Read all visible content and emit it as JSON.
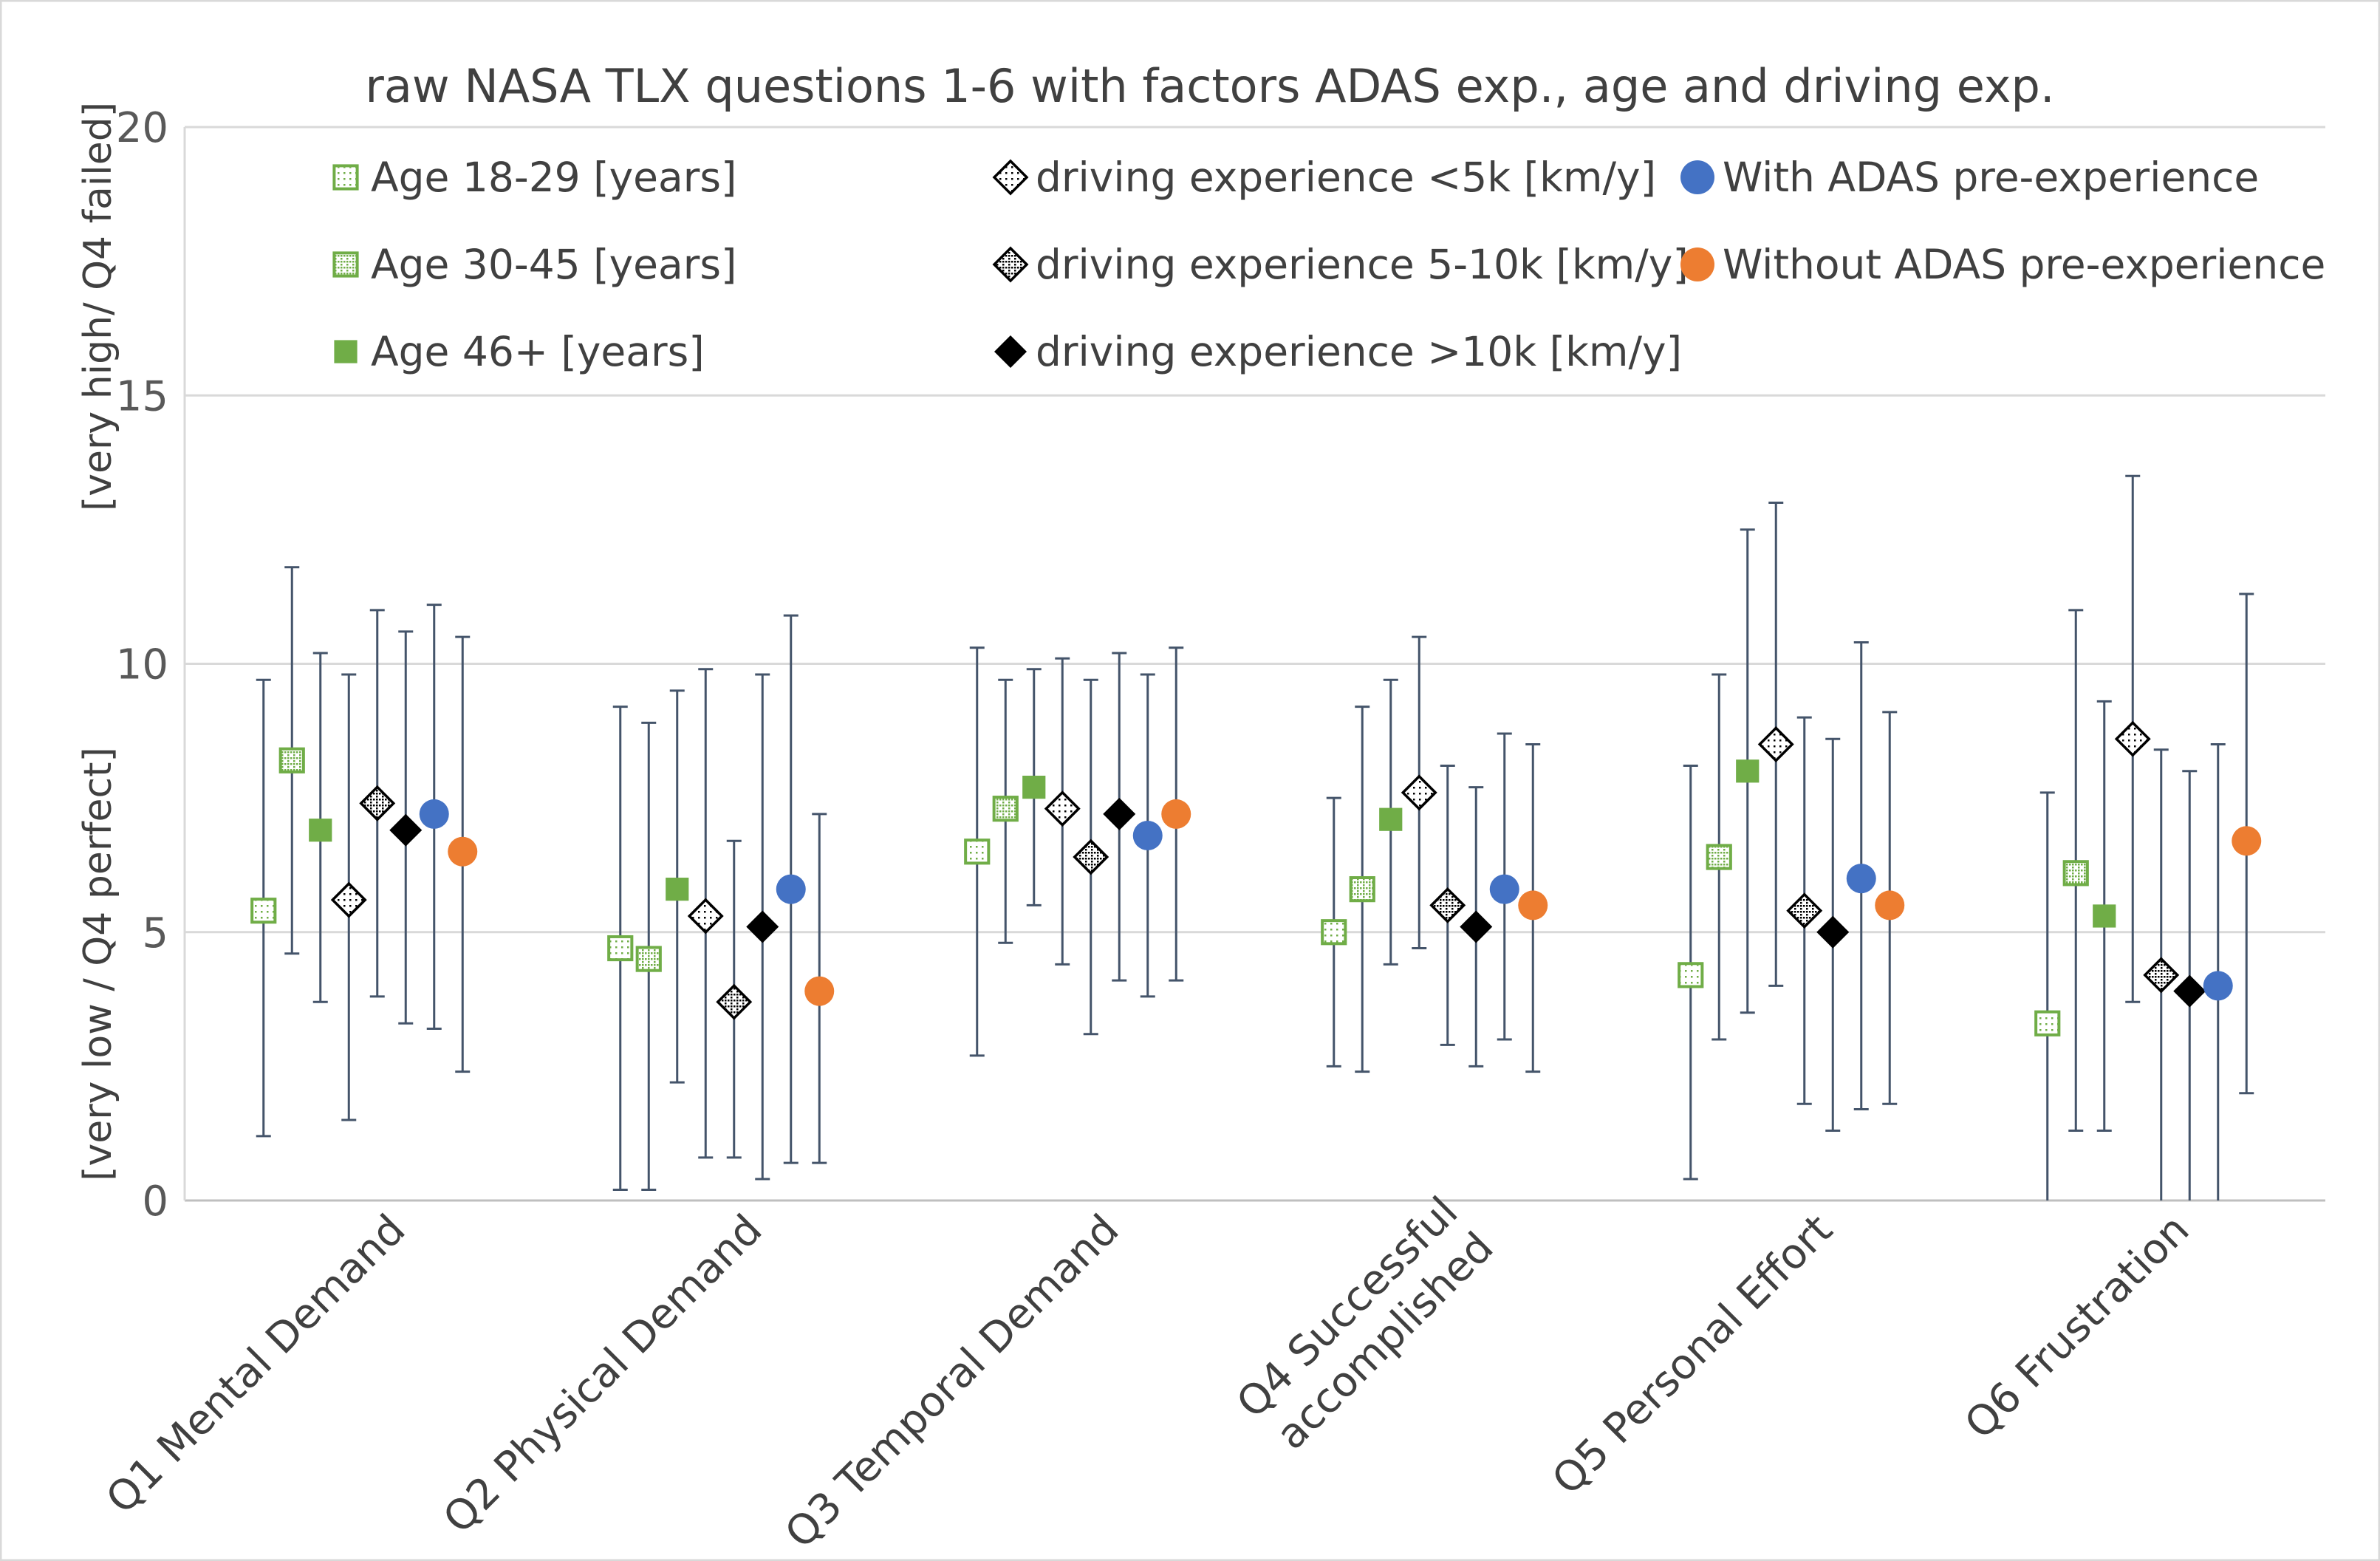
{
  "chart_data": {
    "type": "scatter",
    "title": "raw NASA TLX questions 1-6 with factors ADAS exp., age and driving exp.",
    "ylabel_bottom": "[very low / Q4 perfect]",
    "ylabel_top": "[very high/  Q4 failed]",
    "xlabel": "",
    "ylim": [
      0,
      20
    ],
    "yticks": [
      "0",
      "5",
      "10",
      "15",
      "20"
    ],
    "grid": true,
    "legend_position": "top",
    "categories": [
      {
        "lines": [
          "Q1 Mental Demand"
        ]
      },
      {
        "lines": [
          "Q2 Physical Demand"
        ]
      },
      {
        "lines": [
          "Q3 Temporal Demand"
        ]
      },
      {
        "lines": [
          "Q4 Successful",
          "accomplished"
        ]
      },
      {
        "lines": [
          "Q5 Personal Effort"
        ]
      },
      {
        "lines": [
          "Q6 Frustration"
        ]
      }
    ],
    "series": [
      {
        "name": "Age 18-29 [years]",
        "marker": "square-dotted-light",
        "color": "#70ad47",
        "values": [
          5.4,
          4.7,
          6.5,
          5.0,
          4.2,
          3.3
        ],
        "err_low": [
          1.2,
          0.2,
          2.7,
          2.5,
          0.4,
          0.0
        ],
        "err_high": [
          9.7,
          9.2,
          10.3,
          7.5,
          8.1,
          7.6
        ]
      },
      {
        "name": "Age 30-45 [years]",
        "marker": "square-dotted-dense",
        "color": "#70ad47",
        "values": [
          8.2,
          4.5,
          7.3,
          5.8,
          6.4,
          6.1
        ],
        "err_low": [
          4.6,
          0.2,
          4.8,
          2.4,
          3.0,
          1.3
        ],
        "err_high": [
          11.8,
          8.9,
          9.7,
          9.2,
          9.8,
          11.0
        ]
      },
      {
        "name": "Age 46+ [years]",
        "marker": "square-solid",
        "color": "#70ad47",
        "values": [
          6.9,
          5.8,
          7.7,
          7.1,
          8.0,
          5.3
        ],
        "err_low": [
          3.7,
          2.2,
          5.5,
          4.4,
          3.5,
          1.3
        ],
        "err_high": [
          10.2,
          9.5,
          9.9,
          9.7,
          12.5,
          9.3
        ]
      },
      {
        "name": "driving experience <5k [km/y]",
        "marker": "diamond-dotted-light",
        "color": "#000000",
        "values": [
          5.6,
          5.3,
          7.3,
          7.6,
          8.5,
          8.6
        ],
        "err_low": [
          1.5,
          0.8,
          4.4,
          4.7,
          4.0,
          3.7
        ],
        "err_high": [
          9.8,
          9.9,
          10.1,
          10.5,
          13.0,
          13.5
        ]
      },
      {
        "name": "driving experience 5-10k [km/y]",
        "marker": "diamond-dotted-dense",
        "color": "#000000",
        "values": [
          7.4,
          3.7,
          6.4,
          5.5,
          5.4,
          4.2
        ],
        "err_low": [
          3.8,
          0.8,
          3.1,
          2.9,
          1.8,
          0.0
        ],
        "err_high": [
          11.0,
          6.7,
          9.7,
          8.1,
          9.0,
          8.4
        ]
      },
      {
        "name": "driving experience >10k [km/y]",
        "marker": "diamond-solid",
        "color": "#000000",
        "values": [
          6.9,
          5.1,
          7.2,
          5.1,
          5.0,
          3.9
        ],
        "err_low": [
          3.3,
          0.4,
          4.1,
          2.5,
          1.3,
          0.0
        ],
        "err_high": [
          10.6,
          9.8,
          10.2,
          7.7,
          8.6,
          8.0
        ]
      },
      {
        "name": "With ADAS pre-experience",
        "marker": "circle",
        "color": "#4472c4",
        "values": [
          7.2,
          5.8,
          6.8,
          5.8,
          6.0,
          4.0
        ],
        "err_low": [
          3.2,
          0.7,
          3.8,
          3.0,
          1.7,
          0.0
        ],
        "err_high": [
          11.1,
          10.9,
          9.8,
          8.7,
          10.4,
          8.5
        ]
      },
      {
        "name": "Without ADAS pre-experience",
        "marker": "circle",
        "color": "#ed7d31",
        "values": [
          6.5,
          3.9,
          7.2,
          5.5,
          5.5,
          6.7
        ],
        "err_low": [
          2.4,
          0.7,
          4.1,
          2.4,
          1.8,
          2.0
        ],
        "err_high": [
          10.5,
          7.2,
          10.3,
          8.5,
          9.1,
          11.3
        ]
      }
    ],
    "legend_columns": [
      [
        0,
        1,
        2
      ],
      [
        3,
        4,
        5
      ],
      [
        6,
        7
      ]
    ]
  }
}
